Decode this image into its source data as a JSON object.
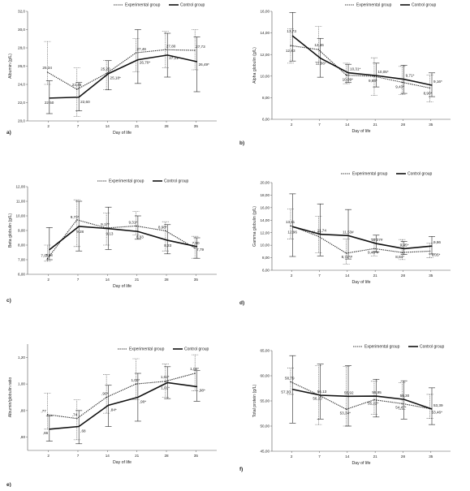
{
  "legend": {
    "experimental": "Experimental group",
    "control": "Control group"
  },
  "chart_data": [
    {
      "type": "line",
      "panel": "a)",
      "xlabel": "Day of life",
      "ylabel": "Albumin (g/L)",
      "categories": [
        "2",
        "7",
        "14",
        "21",
        "28",
        "35"
      ],
      "ylim": [
        20,
        32
      ],
      "yticks": [
        20,
        22,
        24,
        26,
        28,
        30,
        32
      ],
      "ytick_labels": [
        "20,0",
        "22,0",
        "24,0",
        "26,0",
        "28,0",
        "30,0",
        "32,0"
      ],
      "series": [
        {
          "name": "Experimental group",
          "values": [
            25.34,
            23.46,
            25.2,
            27.46,
            27.8,
            27.73
          ],
          "labels": [
            "25,34",
            "23,46",
            "25,20",
            "27,46",
            "27,80",
            "27,73"
          ],
          "err": [
            [
              24.0,
              28.7
            ],
            [
              20.5,
              25.8
            ],
            [
              23.4,
              26.6
            ],
            [
              25.4,
              29.0
            ],
            [
              25.8,
              29.8
            ],
            [
              25.6,
              30.0
            ]
          ]
        },
        {
          "name": "Control group",
          "values": [
            22.5,
            22.6,
            25.18,
            26.7,
            27.21,
            26.49
          ],
          "labels": [
            "22,50",
            "22,60",
            "25,18*",
            "26,70*",
            "27,21",
            "26,49*"
          ],
          "err": [
            [
              20.8,
              24.4
            ],
            [
              21.1,
              24.2
            ],
            [
              23.4,
              26.6
            ],
            [
              24.1,
              30.0
            ],
            [
              24.8,
              29.6
            ],
            [
              23.2,
              29.2
            ]
          ]
        }
      ]
    },
    {
      "type": "line",
      "panel": "b)",
      "xlabel": "Day of life",
      "ylabel": "Alpha globulin (g/L)",
      "categories": [
        "2",
        "7",
        "14",
        "21",
        "28",
        "35"
      ],
      "ylim": [
        6,
        16
      ],
      "yticks": [
        6,
        8,
        10,
        12,
        14,
        16
      ],
      "ytick_labels": [
        "6,00",
        "8,00",
        "10,00",
        "12,00",
        "14,00",
        "16,00"
      ],
      "series": [
        {
          "name": "Experimental group",
          "values": [
            12.83,
            12.46,
            10.09,
            9.98,
            9.43,
            8.9
          ],
          "labels": [
            "12,83",
            "12,46",
            "10,09*",
            "9,98*",
            "9,43*",
            "8,90*"
          ],
          "err": [
            [
              11.2,
              14.4
            ],
            [
              11.3,
              14.6
            ],
            [
              9.3,
              11.2
            ],
            [
              8.2,
              11.7
            ],
            [
              8.3,
              10.9
            ],
            [
              7.6,
              10.1
            ]
          ]
        },
        {
          "name": "Control group",
          "values": [
            13.73,
            11.66,
            10.31,
            10.05,
            9.71,
            9.16
          ],
          "labels": [
            "13,73",
            "11,66*",
            "10,31*",
            "10,05*",
            "9,71*",
            "9,16*"
          ],
          "err": [
            [
              11.4,
              15.9
            ],
            [
              9.9,
              13.5
            ],
            [
              9.4,
              11.1
            ],
            [
              9.0,
              11.2
            ],
            [
              8.4,
              11.0
            ],
            [
              8.1,
              10.3
            ]
          ]
        }
      ]
    },
    {
      "type": "line",
      "panel": "c)",
      "xlabel": "Day of life",
      "ylabel": "Beta globulin (g/L)",
      "categories": [
        "2",
        "7",
        "14",
        "21",
        "28",
        "35"
      ],
      "ylim": [
        6,
        12
      ],
      "yticks": [
        6,
        7,
        8,
        9,
        10,
        11,
        12
      ],
      "ytick_labels": [
        "6,00",
        "7,00",
        "8,00",
        "9,00",
        "10,00",
        "11,00",
        "12,00"
      ],
      "series": [
        {
          "name": "Experimental group",
          "values": [
            7.07,
            9.73,
            9.17,
            9.31,
            8.98,
            7.79
          ],
          "labels": [
            "7,07",
            "9,73*",
            "9,17*",
            "9,31*",
            "8,98*",
            "7,79"
          ],
          "err": [
            [
              6.9,
              8.0
            ],
            [
              7.9,
              11.1
            ],
            [
              8.0,
              10.2
            ],
            [
              8.7,
              10.3
            ],
            [
              7.6,
              9.6
            ],
            [
              7.1,
              8.6
            ]
          ]
        },
        {
          "name": "Control group",
          "values": [
            7.68,
            9.28,
            9.13,
            8.93,
            8.33,
            7.9
          ],
          "labels": [
            "7,68",
            "9,28",
            "9,13",
            "8,93",
            "8,33",
            "7,90"
          ],
          "err": [
            [
              7.0,
              9.2
            ],
            [
              7.6,
              11.0
            ],
            [
              7.7,
              10.6
            ],
            [
              8.4,
              10.0
            ],
            [
              7.4,
              9.4
            ],
            [
              7.1,
              8.5
            ]
          ]
        }
      ]
    },
    {
      "type": "line",
      "panel": "d)",
      "xlabel": "Day of life",
      "ylabel": "Gamma globulin (g/L)",
      "categories": [
        "2",
        "7",
        "14",
        "21",
        "28",
        "35"
      ],
      "ylim": [
        6,
        20
      ],
      "yticks": [
        6,
        8,
        10,
        12,
        14,
        16,
        18,
        20
      ],
      "ytick_labels": [
        "6,00",
        "8,00",
        "10,00",
        "12,00",
        "14,00",
        "16,00",
        "18,00",
        "20,00"
      ],
      "series": [
        {
          "name": "Experimental group",
          "values": [
            13.11,
            11.41,
            8.72,
            9.46,
            8.84,
            9.05
          ],
          "labels": [
            "13,11",
            "11,41",
            "8,72*#",
            "9,46*#",
            "8,84*",
            "9,05*"
          ],
          "err": [
            [
              11.0,
              15.8
            ],
            [
              8.8,
              14.6
            ],
            [
              7.0,
              11.0
            ],
            [
              8.3,
              11.0
            ],
            [
              7.7,
              10.9
            ],
            [
              8.0,
              10.3
            ]
          ]
        },
        {
          "name": "Control group",
          "values": [
            12.96,
            11.74,
            11.53,
            10.27,
            9.45,
            9.86
          ],
          "labels": [
            "12,96",
            "11,74",
            "11,53#",
            "10,27#",
            "9,45*",
            "9,86"
          ],
          "err": [
            [
              8.2,
              18.2
            ],
            [
              8.3,
              16.6
            ],
            [
              7.8,
              15.7
            ],
            [
              8.9,
              11.6
            ],
            [
              8.5,
              10.6
            ],
            [
              8.6,
              11.4
            ]
          ]
        }
      ]
    },
    {
      "type": "line",
      "panel": "e)",
      "xlabel": "Day of life",
      "ylabel": "Albumin/globulin ratio",
      "categories": [
        "2",
        "7",
        "14",
        "21",
        "28",
        "35"
      ],
      "ylim": [
        0.5,
        1.3
      ],
      "yticks": [
        0.6,
        0.8,
        1.0,
        1.2
      ],
      "ytick_labels": [
        ",60",
        ",80",
        "1,00",
        "1,20"
      ],
      "series": [
        {
          "name": "Experimental group",
          "values": [
            0.77,
            0.74,
            0.9,
            1.0,
            1.02,
            1.08
          ],
          "labels": [
            ",77",
            ",74",
            ",90*",
            "1,00*",
            "1,02*",
            "1,08*"
          ],
          "err": [
            [
              0.66,
              0.93
            ],
            [
              0.58,
              0.88
            ],
            [
              0.78,
              1.07
            ],
            [
              0.88,
              1.19
            ],
            [
              0.9,
              1.15
            ],
            [
              0.95,
              1.22
            ]
          ]
        },
        {
          "name": "Control group",
          "values": [
            0.66,
            0.68,
            0.84,
            0.9,
            1.01,
            0.98
          ],
          "labels": [
            ",66",
            ",68",
            ",84*",
            ",90*",
            "1,01*",
            ",98*"
          ],
          "err": [
            [
              0.57,
              0.76
            ],
            [
              0.55,
              0.8
            ],
            [
              0.68,
              0.99
            ],
            [
              0.72,
              1.08
            ],
            [
              0.89,
              1.13
            ],
            [
              0.87,
              1.1
            ]
          ]
        }
      ]
    },
    {
      "type": "line",
      "panel": "f)",
      "xlabel": "Day of life",
      "ylabel": "Total protein (g/L)",
      "categories": [
        "2",
        "7",
        "14",
        "21",
        "28",
        "35"
      ],
      "ylim": [
        45,
        65
      ],
      "yticks": [
        45,
        50,
        55,
        60,
        65
      ],
      "ytick_labels": [
        "45,00",
        "50,00",
        "55,00",
        "60,00",
        "65,00"
      ],
      "series": [
        {
          "name": "Experimental group",
          "values": [
            58.79,
            56.2,
            53.34,
            55.22,
            54.47,
            53.46
          ],
          "labels": [
            "58,79",
            "56,20",
            "53,34*",
            "55,22*",
            "54,47*",
            "53,46*"
          ],
          "err": [
            [
              56.3,
              61.5
            ],
            [
              50.3,
              62.0
            ],
            [
              50.0,
              61.9
            ],
            [
              52.3,
              58.9
            ],
            [
              53.3,
              58.6
            ],
            [
              51.5,
              56.3
            ]
          ]
        },
        {
          "name": "Control group",
          "values": [
            57.3,
            56.13,
            55.92,
            55.95,
            55.3,
            53.39
          ],
          "labels": [
            "57,30",
            "56,13",
            "55,92",
            "55,95",
            "55,30",
            "53,39"
          ],
          "err": [
            [
              50.6,
              64.0
            ],
            [
              51.4,
              62.3
            ],
            [
              50.0,
              62.0
            ],
            [
              51.8,
              59.3
            ],
            [
              51.4,
              59.0
            ],
            [
              50.3,
              57.6
            ]
          ]
        }
      ]
    }
  ]
}
